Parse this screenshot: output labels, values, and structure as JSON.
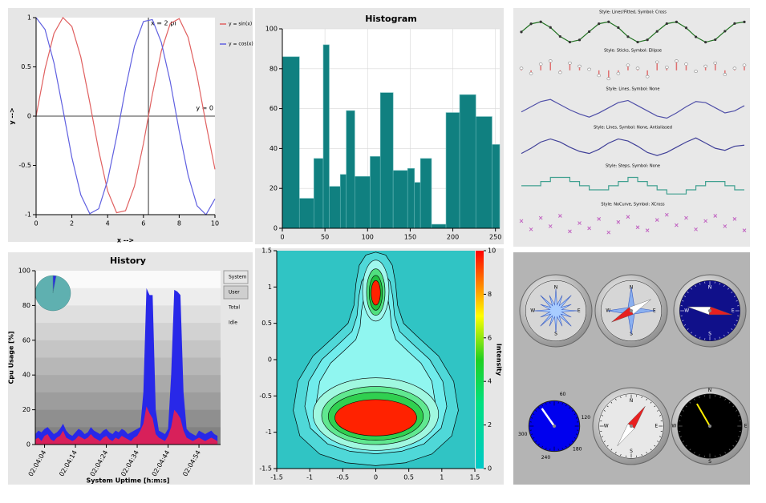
{
  "chart_data": [
    {
      "type": "line",
      "xlabel": "x -->",
      "ylabel": "y -->",
      "x": [
        0,
        0.5,
        1,
        1.5,
        2,
        2.5,
        3,
        3.5,
        4,
        4.5,
        5,
        5.5,
        6,
        6.5,
        7,
        7.5,
        8,
        8.5,
        9,
        9.5,
        10
      ],
      "series": [
        {
          "name": "y = sin(x)",
          "color": "#e06060",
          "values": [
            0,
            0.48,
            0.84,
            1.0,
            0.91,
            0.6,
            0.14,
            -0.35,
            -0.76,
            -0.98,
            -0.96,
            -0.71,
            -0.28,
            0.22,
            0.66,
            0.94,
            0.99,
            0.8,
            0.41,
            -0.08,
            -0.54
          ]
        },
        {
          "name": "y = cos(x)",
          "color": "#6060e0",
          "values": [
            1,
            0.88,
            0.54,
            0.07,
            -0.42,
            -0.8,
            -0.99,
            -0.94,
            -0.65,
            -0.21,
            0.28,
            0.71,
            0.96,
            0.98,
            0.75,
            0.35,
            -0.15,
            -0.6,
            -0.91,
            -1.0,
            -0.84
          ]
        }
      ],
      "markers": [
        {
          "label": "x = 2 pi",
          "x": 6.28
        },
        {
          "label": "y = 0",
          "y": 0
        }
      ],
      "xlim": [
        0,
        10
      ],
      "xticks": [
        0,
        2,
        4,
        6,
        8,
        10
      ],
      "ylim": [
        -1,
        1
      ],
      "yticks": [
        -1,
        -0.5,
        0,
        0.5,
        1
      ],
      "grid": false
    },
    {
      "type": "histogram",
      "title": "Histogram",
      "color": "#108080",
      "bins": [
        0,
        20,
        37,
        48,
        55,
        68,
        75,
        85,
        103,
        115,
        130,
        147,
        155,
        162,
        175,
        192,
        208,
        227,
        246,
        255
      ],
      "values": [
        86,
        15,
        35,
        92,
        21,
        27,
        59,
        26,
        36,
        68,
        29,
        30,
        23,
        35,
        2,
        58,
        67,
        56,
        42
      ],
      "xlim": [
        0,
        255
      ],
      "xticks": [
        0,
        50,
        100,
        150,
        200,
        250
      ],
      "ylim": [
        0,
        100
      ],
      "yticks": [
        0,
        20,
        40,
        60,
        80,
        100
      ],
      "grid": true
    },
    {
      "type": "curves",
      "series": [
        {
          "name": "Style: Lines!Fitted, Symbol: Cross",
          "style": "lines",
          "symbol": "cross",
          "color": "#207020",
          "values": [
            0,
            0.78,
            0.97,
            0.43,
            -0.44,
            -0.98,
            -0.77,
            0.03,
            0.79,
            0.97,
            0.41,
            -0.46,
            -0.98,
            -0.76,
            0.05,
            0.8,
            0.96,
            0.39,
            -0.48,
            -0.99,
            -0.75,
            0.07,
            0.81,
            0.96
          ]
        },
        {
          "name": "Style: Sticks, Symbol: Ellipse",
          "style": "sticks",
          "symbol": "ellipse",
          "color": "#e07070",
          "values": [
            0.2,
            -0.3,
            0.6,
            0.9,
            -0.2,
            0.7,
            0.4,
            0.1,
            -0.5,
            -0.8,
            -0.3,
            0.5,
            0.2,
            -0.6,
            0.8,
            0.3,
            0.9,
            0.6,
            -0.1,
            0.4,
            0.7,
            -0.4,
            0.2,
            0.5
          ]
        },
        {
          "name": "Style: Lines, Symbol: None",
          "style": "lines",
          "symbol": "none",
          "color": "#5050a8",
          "values": [
            -0.3,
            0.2,
            0.7,
            0.9,
            0.4,
            -0.1,
            -0.5,
            -0.8,
            -0.4,
            0.1,
            0.6,
            0.8,
            0.3,
            -0.2,
            -0.7,
            -0.9,
            -0.4,
            0.2,
            0.7,
            0.6,
            0.1,
            -0.4,
            -0.2,
            0.3
          ]
        },
        {
          "name": "Style: Lines, Symbol: None, Antialiased",
          "style": "lines",
          "symbol": "none",
          "color": "#404098",
          "values": [
            -0.6,
            -0.1,
            0.5,
            0.8,
            0.5,
            0,
            -0.4,
            -0.6,
            -0.2,
            0.4,
            0.8,
            0.6,
            0.1,
            -0.5,
            -0.8,
            -0.5,
            0,
            0.5,
            0.9,
            0.4,
            -0.1,
            -0.3,
            0.1,
            0.2
          ]
        },
        {
          "name": "Style: Steps, Symbol: None",
          "style": "steps",
          "symbol": "none",
          "color": "#40a090",
          "values": [
            0,
            0,
            0.4,
            0.8,
            0.8,
            0.4,
            0,
            -0.4,
            -0.4,
            0,
            0.4,
            0.8,
            0.4,
            0,
            -0.4,
            -0.8,
            -0.8,
            -0.4,
            0,
            0.4,
            0.4,
            0,
            -0.4,
            -0.4
          ]
        },
        {
          "name": "Style: NoCurve, Symbol: XCross",
          "style": "none",
          "symbol": "xcross",
          "color": "#c060c0",
          "values": [
            0.3,
            -0.5,
            0.6,
            -0.2,
            0.8,
            -0.7,
            0.1,
            -0.4,
            0.5,
            -0.8,
            0.2,
            0.7,
            -0.3,
            -0.6,
            0.4,
            0.9,
            -0.1,
            0.6,
            -0.5,
            0.3,
            0.8,
            -0.2,
            0.5,
            -0.6
          ]
        }
      ]
    },
    {
      "type": "area",
      "title": "History",
      "xlabel": "System Uptime [h:m:s]",
      "ylabel": "Cpu Usage [%]",
      "legend": [
        "System",
        "User",
        "Total",
        "Idle"
      ],
      "x": [
        0,
        1,
        2,
        3,
        4,
        5,
        6,
        7,
        8,
        9,
        10,
        11,
        12,
        13,
        14,
        15,
        16,
        17,
        18,
        19,
        20,
        21,
        22,
        23,
        24,
        25,
        26,
        27,
        28,
        29,
        30,
        31,
        32,
        33,
        34,
        35,
        36,
        37,
        38,
        39,
        40,
        41,
        42,
        43,
        44,
        45,
        46,
        47,
        48,
        49,
        50,
        51,
        52,
        53,
        54,
        55,
        56,
        57,
        58,
        59
      ],
      "series": [
        {
          "color": "#2828e8",
          "values": [
            6,
            8,
            7,
            9,
            10,
            8,
            6,
            7,
            9,
            12,
            8,
            6,
            5,
            7,
            9,
            8,
            6,
            7,
            10,
            8,
            7,
            6,
            8,
            9,
            7,
            6,
            8,
            7,
            9,
            8,
            6,
            7,
            8,
            9,
            10,
            30,
            90,
            86,
            86,
            20,
            8,
            7,
            6,
            9,
            40,
            89,
            88,
            86,
            30,
            9,
            7,
            6,
            5,
            8,
            7,
            6,
            7,
            8,
            6,
            5
          ]
        },
        {
          "color": "#d8205a",
          "values": [
            3,
            4,
            2,
            5,
            6,
            3,
            2,
            4,
            5,
            8,
            4,
            3,
            2,
            3,
            5,
            4,
            3,
            4,
            6,
            4,
            3,
            2,
            4,
            5,
            3,
            2,
            4,
            3,
            5,
            4,
            3,
            2,
            4,
            5,
            8,
            12,
            22,
            18,
            15,
            6,
            4,
            3,
            2,
            5,
            10,
            20,
            18,
            15,
            8,
            4,
            3,
            2,
            3,
            4,
            3,
            2,
            3,
            4,
            3,
            2
          ]
        }
      ],
      "pie_values": [
        3,
        97
      ],
      "pie_colors": [
        "#2828e8",
        "#5fb0b0"
      ],
      "xlim": [
        0,
        60
      ],
      "xticks": [
        {
          "value": 3,
          "label": "02:04:04"
        },
        {
          "value": 13,
          "label": "02:04:14"
        },
        {
          "value": 23,
          "label": "02:04:24"
        },
        {
          "value": 33,
          "label": "02:04:34"
        },
        {
          "value": 43,
          "label": "02:04:44"
        },
        {
          "value": 53,
          "label": "02:04:54"
        }
      ],
      "ylim": [
        0,
        100
      ],
      "yticks": [
        0,
        20,
        40,
        60,
        80,
        100
      ]
    },
    {
      "type": "spectrogram",
      "colorbar_label": "Intensity",
      "xlim": [
        -1.5,
        1.5
      ],
      "xticks": [
        -1.5,
        -1,
        -0.5,
        0,
        0.5,
        1,
        1.5
      ],
      "ylim": [
        -1.5,
        1.5
      ],
      "yticks": [
        -1.5,
        -1,
        -0.5,
        0,
        0.5,
        1,
        1.5
      ],
      "zlim": [
        0,
        10
      ],
      "zticks": [
        0,
        2,
        4,
        6,
        8,
        10
      ]
    }
  ],
  "dials": [
    {
      "kind": "rose",
      "labels": [
        "N",
        "E",
        "S",
        "W"
      ]
    },
    {
      "kind": "star",
      "labels": [
        "N",
        "E",
        "S",
        "W"
      ],
      "needle": 60
    },
    {
      "kind": "navy",
      "labels": [
        "N",
        "E",
        "S",
        "W"
      ],
      "needle": 280
    },
    {
      "kind": "speed",
      "labels": [
        "60",
        "120",
        "180",
        "240",
        "300"
      ],
      "needle": 10
    },
    {
      "kind": "white",
      "labels": [
        "N",
        "E",
        "S",
        "W"
      ],
      "needle": 35
    },
    {
      "kind": "black",
      "labels": [
        "N",
        "E",
        "S",
        "W"
      ],
      "needle": 330
    }
  ]
}
